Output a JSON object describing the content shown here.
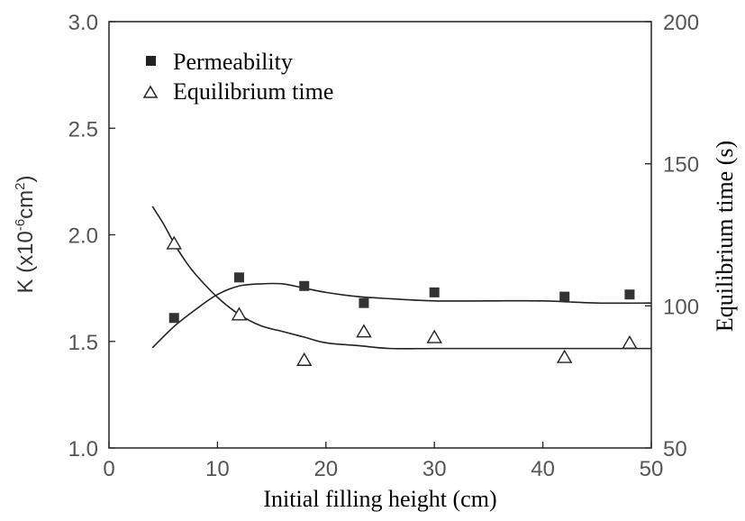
{
  "chart_data": {
    "type": "scatter",
    "xlabel": "Initial filling height (cm)",
    "ylabel_left": {
      "main": "K (x10",
      "sup1": "-6",
      "mid": "cm",
      "sup2": "2",
      "end": ")"
    },
    "ylabel_right": "Equilibrium time (s)",
    "xlim": [
      0,
      50
    ],
    "ylim_left": [
      1.0,
      3.0
    ],
    "ylim_right": [
      50,
      200
    ],
    "x_ticks": [
      "0",
      "10",
      "20",
      "30",
      "40",
      "50"
    ],
    "y_left_ticks": [
      "1.0",
      "1.5",
      "2.0",
      "2.5",
      "3.0"
    ],
    "y_right_ticks": [
      "50",
      "100",
      "150",
      "200"
    ],
    "grid": false,
    "legend_position": "top-left",
    "series": [
      {
        "name": "Permeability",
        "axis": "left",
        "marker": "filled-square",
        "x": [
          6,
          12,
          18,
          23.5,
          30,
          42,
          48
        ],
        "y": [
          1.61,
          1.8,
          1.76,
          1.68,
          1.73,
          1.71,
          1.72
        ],
        "fit_x": [
          4,
          6,
          8,
          10,
          12,
          14,
          16,
          18,
          20,
          23,
          26,
          30,
          35,
          40,
          45,
          50
        ],
        "fit_y": [
          1.47,
          1.57,
          1.65,
          1.72,
          1.76,
          1.77,
          1.77,
          1.75,
          1.73,
          1.71,
          1.7,
          1.69,
          1.69,
          1.69,
          1.68,
          1.68
        ]
      },
      {
        "name": "Equilibrium time",
        "axis": "right",
        "marker": "open-triangle",
        "x": [
          6,
          12,
          18,
          23.5,
          30,
          42,
          48
        ],
        "y": [
          122,
          97,
          81,
          91,
          89,
          82,
          87
        ],
        "fit_x": [
          4,
          5,
          6,
          7,
          8,
          10,
          12,
          14,
          16,
          18,
          20,
          23,
          26,
          30,
          35,
          40,
          45,
          50
        ],
        "fit_y": [
          135,
          129,
          122,
          116,
          111,
          103,
          97,
          93,
          91,
          89,
          87,
          86,
          85,
          85,
          85,
          85,
          85,
          85
        ]
      }
    ]
  }
}
